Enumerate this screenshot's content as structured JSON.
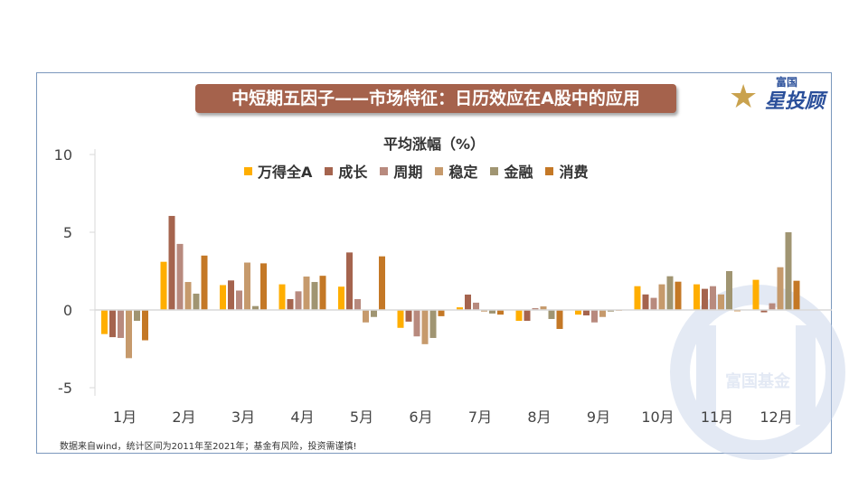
{
  "title": "中短期五因子——市场特征：日历效应在A股中的应用",
  "logo": {
    "small": "富国",
    "big": "星投顾"
  },
  "watermark": "富国基金",
  "footnote": "数据来自wind，统计区间为2011年至2021年；基金有风险，投资需谨慎!",
  "chart_data": {
    "type": "bar",
    "title": "平均涨幅（%）",
    "xlabel": "",
    "ylabel": "",
    "ylim": [
      -5,
      10
    ],
    "yticks": [
      "10",
      "5",
      "0",
      "-5"
    ],
    "ytick_values": [
      10,
      5,
      0,
      -5
    ],
    "legend_position": "top-center",
    "categories": [
      "1月",
      "2月",
      "3月",
      "4月",
      "5月",
      "6月",
      "7月",
      "8月",
      "9月",
      "10月",
      "11月",
      "12月"
    ],
    "series": [
      {
        "name": "万得全A",
        "color": "#ffae00",
        "values": [
          -1.55,
          3.1,
          1.6,
          1.65,
          1.5,
          -1.15,
          0.17,
          -0.7,
          -0.3,
          1.53,
          1.65,
          1.94
        ]
      },
      {
        "name": "成长",
        "color": "#a5644e",
        "values": [
          -1.75,
          6.05,
          1.9,
          0.7,
          3.7,
          -0.75,
          0.99,
          -0.7,
          -0.35,
          1.0,
          1.36,
          -0.15
        ]
      },
      {
        "name": "周期",
        "color": "#b88a7e",
        "values": [
          -1.8,
          4.25,
          1.25,
          1.2,
          0.7,
          -1.7,
          0.47,
          0.12,
          -0.8,
          0.78,
          1.53,
          0.43
        ]
      },
      {
        "name": "稳定",
        "color": "#c69a6c",
        "values": [
          -3.1,
          1.8,
          3.05,
          2.15,
          -0.8,
          -2.2,
          -0.1,
          0.23,
          -0.45,
          1.65,
          1.0,
          2.75
        ]
      },
      {
        "name": "金融",
        "color": "#a09572",
        "values": [
          -0.7,
          1.05,
          0.25,
          1.8,
          -0.45,
          -1.8,
          -0.23,
          -0.58,
          -0.1,
          2.17,
          2.5,
          5.0
        ]
      },
      {
        "name": "消费",
        "color": "#c47826",
        "values": [
          -1.95,
          3.5,
          3.0,
          2.2,
          3.45,
          -0.4,
          -0.3,
          -1.22,
          -0.05,
          1.82,
          -0.08,
          1.88
        ]
      }
    ]
  }
}
